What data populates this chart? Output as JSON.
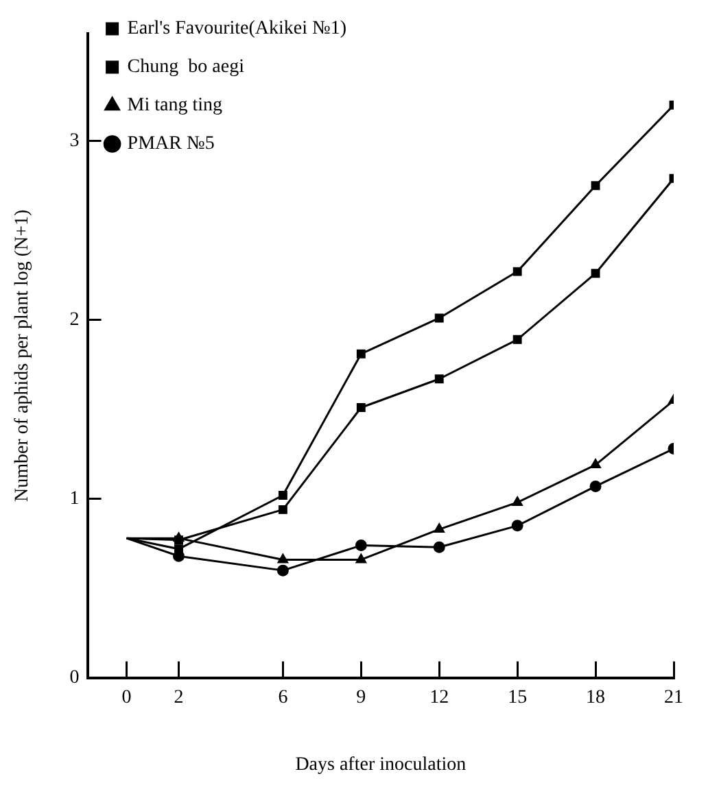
{
  "chart_data": {
    "type": "line",
    "xlabel": "Days after inoculation",
    "ylabel": "Number of aphids per plant log (N+1)",
    "x": [
      0,
      2,
      6,
      9,
      12,
      15,
      18,
      21
    ],
    "xlim": [
      -1.5,
      21
    ],
    "xticks": [
      0,
      2,
      6,
      9,
      12,
      15,
      18,
      21
    ],
    "ylim": [
      0,
      3.6
    ],
    "yticks": [
      0,
      1,
      2,
      3
    ],
    "grid": false,
    "legend": "top left",
    "line_style": "solid",
    "series": [
      {
        "name": "Earl's Favourite(Akikei №1)",
        "color": "#000000",
        "marker": "square",
        "values": [
          0.78,
          0.72,
          1.02,
          1.81,
          2.01,
          2.27,
          2.75,
          3.2
        ]
      },
      {
        "name": "Chung  bo aegi",
        "color": "#000000",
        "marker": "square",
        "values": [
          0.78,
          0.77,
          0.94,
          1.51,
          1.67,
          1.89,
          2.26,
          2.79
        ]
      },
      {
        "name": "Mi tang ting",
        "color": "#000000",
        "marker": "triangle",
        "values": [
          0.78,
          0.78,
          0.66,
          0.66,
          0.83,
          0.98,
          1.19,
          1.55
        ]
      },
      {
        "name": "PMAR №5",
        "color": "#000000",
        "marker": "circle",
        "values": [
          0.78,
          0.68,
          0.6,
          0.74,
          0.73,
          0.85,
          1.07,
          1.28
        ]
      }
    ]
  }
}
